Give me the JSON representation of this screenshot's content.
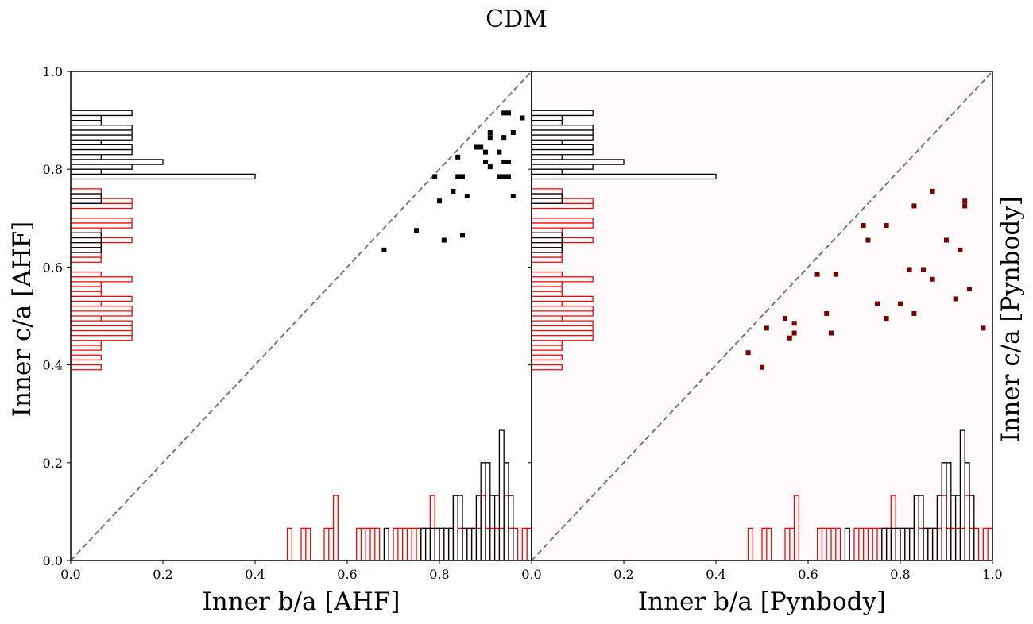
{
  "figure": {
    "suptitle": "CDM"
  },
  "colors": {
    "ahf_marker": "#000000",
    "pyn_marker": "#7a0000",
    "hist_ba": "#000000",
    "hist_ca": "#ff0000",
    "diagonal": "#777777",
    "right_panel_bg": "#fffbfd"
  },
  "chart_data": [
    {
      "type": "scatter",
      "panel": "left",
      "title": "",
      "xlabel": "Inner b/a [AHF]",
      "ylabel": "Inner c/a [AHF]",
      "ylabel_side": "left",
      "xlim": [
        0,
        1.0
      ],
      "ylim": [
        0,
        1.0
      ],
      "x_ticks": [
        "0.0",
        "0.2",
        "0.4",
        "0.6",
        "0.8",
        "0.0"
      ],
      "y_ticks": [
        "0.0",
        "0.2",
        "0.4",
        "0.6",
        "0.8",
        "1.0"
      ],
      "diagonal": true,
      "points": [
        {
          "x": 0.68,
          "y": 0.635
        },
        {
          "x": 0.75,
          "y": 0.675
        },
        {
          "x": 0.8,
          "y": 0.735
        },
        {
          "x": 0.79,
          "y": 0.785
        },
        {
          "x": 0.81,
          "y": 0.655
        },
        {
          "x": 0.83,
          "y": 0.755
        },
        {
          "x": 0.84,
          "y": 0.785
        },
        {
          "x": 0.85,
          "y": 0.785
        },
        {
          "x": 0.84,
          "y": 0.825
        },
        {
          "x": 0.85,
          "y": 0.665
        },
        {
          "x": 0.86,
          "y": 0.745
        },
        {
          "x": 0.88,
          "y": 0.845
        },
        {
          "x": 0.89,
          "y": 0.845
        },
        {
          "x": 0.9,
          "y": 0.835
        },
        {
          "x": 0.9,
          "y": 0.815
        },
        {
          "x": 0.91,
          "y": 0.805
        },
        {
          "x": 0.91,
          "y": 0.865
        },
        {
          "x": 0.91,
          "y": 0.875
        },
        {
          "x": 0.93,
          "y": 0.835
        },
        {
          "x": 0.93,
          "y": 0.785
        },
        {
          "x": 0.94,
          "y": 0.785
        },
        {
          "x": 0.95,
          "y": 0.785
        },
        {
          "x": 0.94,
          "y": 0.815
        },
        {
          "x": 0.95,
          "y": 0.815
        },
        {
          "x": 0.94,
          "y": 0.865
        },
        {
          "x": 0.94,
          "y": 0.915
        },
        {
          "x": 0.95,
          "y": 0.915
        },
        {
          "x": 0.96,
          "y": 0.875
        },
        {
          "x": 0.96,
          "y": 0.745
        },
        {
          "x": 0.98,
          "y": 0.905
        }
      ],
      "hist_ba": {
        "color": "black",
        "bins": [
          0.68,
          0.69,
          0.76,
          0.77,
          0.78,
          0.79,
          0.8,
          0.81,
          0.82,
          0.83,
          0.84,
          0.85,
          0.86,
          0.87,
          0.88,
          0.89,
          0.9,
          0.91,
          0.92,
          0.93,
          0.94,
          0.95,
          0.96,
          0.97
        ],
        "heights": [
          0.066,
          0,
          0.066,
          0.066,
          0.066,
          0.066,
          0.066,
          0.066,
          0.066,
          0.133,
          0.133,
          0.066,
          0.066,
          0.066,
          0.133,
          0.2,
          0.2,
          0.133,
          0.133,
          0.266,
          0.2,
          0.133,
          0
        ]
      },
      "hist_ca": {
        "color": "black",
        "bins": [
          0.63,
          0.64,
          0.65,
          0.66,
          0.67,
          0.68,
          0.69,
          0.7,
          0.71,
          0.72,
          0.73,
          0.74,
          0.75,
          0.76,
          0.77,
          0.78,
          0.79,
          0.8,
          0.81,
          0.82,
          0.83,
          0.84,
          0.85,
          0.86,
          0.87,
          0.88,
          0.89,
          0.9,
          0.91,
          0.92
        ],
        "heights": [
          0.066,
          0.066,
          0.066,
          0.066,
          0,
          0,
          0,
          0,
          0,
          0,
          0.066,
          0.066,
          0,
          0,
          0,
          0.4,
          0.066,
          0.133,
          0.2,
          0.066,
          0.133,
          0.133,
          0.066,
          0.133,
          0.133,
          0.133,
          0.066,
          0.066,
          0.133
        ]
      }
    },
    {
      "type": "scatter",
      "panel": "right",
      "title": "",
      "xlabel": "Inner b/a [Pynbody]",
      "ylabel": "Inner c/a [Pynbody]",
      "ylabel_side": "right",
      "xlim": [
        0,
        1.0
      ],
      "ylim": [
        0,
        1.0
      ],
      "x_ticks": [
        "0.2",
        "0.4",
        "0.6",
        "0.8",
        "1.0"
      ],
      "y_ticks": [],
      "diagonal": true,
      "points": [
        {
          "x": 0.47,
          "y": 0.425
        },
        {
          "x": 0.5,
          "y": 0.395
        },
        {
          "x": 0.51,
          "y": 0.475
        },
        {
          "x": 0.55,
          "y": 0.495
        },
        {
          "x": 0.56,
          "y": 0.455
        },
        {
          "x": 0.57,
          "y": 0.465
        },
        {
          "x": 0.57,
          "y": 0.485
        },
        {
          "x": 0.62,
          "y": 0.585
        },
        {
          "x": 0.64,
          "y": 0.505
        },
        {
          "x": 0.65,
          "y": 0.465
        },
        {
          "x": 0.66,
          "y": 0.585
        },
        {
          "x": 0.72,
          "y": 0.685
        },
        {
          "x": 0.73,
          "y": 0.655
        },
        {
          "x": 0.75,
          "y": 0.525
        },
        {
          "x": 0.77,
          "y": 0.685
        },
        {
          "x": 0.77,
          "y": 0.495
        },
        {
          "x": 0.8,
          "y": 0.525
        },
        {
          "x": 0.82,
          "y": 0.595
        },
        {
          "x": 0.83,
          "y": 0.725
        },
        {
          "x": 0.83,
          "y": 0.505
        },
        {
          "x": 0.85,
          "y": 0.595
        },
        {
          "x": 0.87,
          "y": 0.755
        },
        {
          "x": 0.87,
          "y": 0.575
        },
        {
          "x": 0.9,
          "y": 0.655
        },
        {
          "x": 0.92,
          "y": 0.535
        },
        {
          "x": 0.93,
          "y": 0.635
        },
        {
          "x": 0.94,
          "y": 0.735
        },
        {
          "x": 0.94,
          "y": 0.725
        },
        {
          "x": 0.95,
          "y": 0.555
        },
        {
          "x": 0.98,
          "y": 0.475
        }
      ],
      "hist_ba": {
        "color": "black",
        "bins": [
          0.68,
          0.69,
          0.76,
          0.77,
          0.78,
          0.79,
          0.8,
          0.81,
          0.82,
          0.83,
          0.84,
          0.85,
          0.86,
          0.87,
          0.88,
          0.89,
          0.9,
          0.91,
          0.92,
          0.93,
          0.94,
          0.95,
          0.96,
          0.97
        ],
        "heights": [
          0.066,
          0,
          0.066,
          0.066,
          0.066,
          0.066,
          0.066,
          0.066,
          0.066,
          0.133,
          0.133,
          0.066,
          0.066,
          0.066,
          0.133,
          0.2,
          0.2,
          0.133,
          0.133,
          0.266,
          0.2,
          0.133,
          0
        ]
      },
      "hist_ca": {
        "color": "black",
        "bins": [
          0.63,
          0.64,
          0.65,
          0.66,
          0.67,
          0.68,
          0.69,
          0.7,
          0.71,
          0.72,
          0.73,
          0.74,
          0.75,
          0.76,
          0.77,
          0.78,
          0.79,
          0.8,
          0.81,
          0.82,
          0.83,
          0.84,
          0.85,
          0.86,
          0.87,
          0.88,
          0.89,
          0.9,
          0.91,
          0.92
        ],
        "heights": [
          0.066,
          0.066,
          0.066,
          0.066,
          0,
          0,
          0,
          0,
          0,
          0,
          0.066,
          0.066,
          0,
          0,
          0,
          0.4,
          0.066,
          0.133,
          0.2,
          0.066,
          0.133,
          0.133,
          0.066,
          0.133,
          0.133,
          0.133,
          0.066,
          0.066,
          0.133
        ]
      }
    }
  ],
  "pyn_hist_ba": {
    "color": "red",
    "bins": [
      0.47,
      0.48,
      0.49,
      0.5,
      0.51,
      0.52,
      0.53,
      0.54,
      0.55,
      0.56,
      0.57,
      0.58,
      0.59,
      0.6,
      0.61,
      0.62,
      0.63,
      0.64,
      0.65,
      0.66,
      0.67,
      0.68,
      0.69,
      0.7,
      0.71,
      0.72,
      0.73,
      0.74,
      0.75,
      0.76,
      0.77,
      0.78,
      0.79,
      0.8,
      0.81,
      0.82,
      0.83,
      0.84,
      0.85,
      0.86,
      0.87,
      0.88,
      0.89,
      0.9,
      0.91,
      0.92,
      0.93,
      0.94,
      0.95,
      0.96,
      0.97,
      0.98,
      0.99
    ],
    "heights": [
      0.066,
      0,
      0,
      0.066,
      0.066,
      0,
      0,
      0,
      0.066,
      0.066,
      0.133,
      0,
      0,
      0,
      0,
      0.066,
      0.066,
      0.066,
      0.066,
      0.066,
      0,
      0,
      0,
      0.066,
      0.066,
      0.066,
      0.066,
      0.066,
      0.066,
      0.066,
      0.066,
      0.133,
      0.066,
      0.066,
      0.066,
      0.066,
      0.133,
      0.066,
      0.066,
      0.066,
      0.066,
      0.066,
      0.133,
      0.066,
      0.066,
      0.066,
      0.066,
      0.133,
      0.066,
      0.066,
      0,
      0.066,
      0.066
    ]
  },
  "pyn_hist_ca": {
    "color": "red",
    "bins": [
      0.39,
      0.4,
      0.41,
      0.42,
      0.43,
      0.44,
      0.45,
      0.46,
      0.47,
      0.48,
      0.49,
      0.5,
      0.51,
      0.52,
      0.53,
      0.54,
      0.55,
      0.56,
      0.57,
      0.58,
      0.59,
      0.6,
      0.61,
      0.62,
      0.63,
      0.64,
      0.65,
      0.66,
      0.67,
      0.68,
      0.69,
      0.7,
      0.71,
      0.72,
      0.73,
      0.74,
      0.75,
      0.76
    ],
    "heights": [
      0.066,
      0,
      0.066,
      0,
      0.066,
      0.066,
      0.133,
      0.133,
      0.133,
      0.133,
      0.066,
      0.133,
      0.133,
      0.066,
      0.133,
      0.066,
      0.066,
      0.066,
      0.133,
      0.066,
      0,
      0,
      0.066,
      0.066,
      0.066,
      0.066,
      0.133,
      0.066,
      0.066,
      0.133,
      0.133,
      0,
      0,
      0.133,
      0.133,
      0.066,
      0.066
    ]
  }
}
